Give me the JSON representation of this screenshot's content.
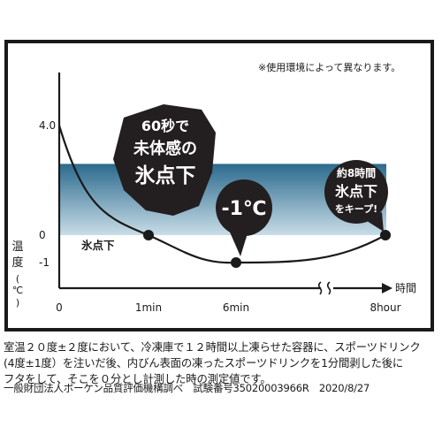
{
  "chart_data": {
    "type": "line",
    "note": "※使用環境によって異なります。",
    "y_label_chars": [
      "温",
      "度",
      "(",
      "℃",
      ")"
    ],
    "x_unit": "時間",
    "y_ticks": [
      {
        "value": 4.0,
        "label": "4.0"
      },
      {
        "value": 0,
        "label": "0"
      },
      {
        "value": -1,
        "label": "-1"
      }
    ],
    "x_ticks": [
      {
        "key": "t0",
        "label": "0"
      },
      {
        "key": "t1",
        "label": "1min"
      },
      {
        "key": "t6",
        "label": "6min"
      },
      {
        "key": "t8",
        "label": "8hour"
      }
    ],
    "ylim": [
      -1.4,
      4.0
    ],
    "freeze_band": {
      "label": "氷点下",
      "from": 0,
      "to": 2.6
    },
    "series": [
      {
        "points": [
          {
            "x": "0",
            "y": 4.0
          },
          {
            "x": "1min",
            "y": 0.0
          },
          {
            "x": "6min",
            "y": -1.0
          },
          {
            "x": "8hour",
            "y": 0.0
          }
        ]
      }
    ],
    "callouts": [
      {
        "key": "c1",
        "lines": [
          "60秒で",
          "未体感の",
          "氷点下"
        ]
      },
      {
        "key": "c2",
        "lines": [
          "-1℃"
        ]
      },
      {
        "key": "c3",
        "lines": [
          "約8時間",
          "氷点下",
          "をキープ!"
        ]
      }
    ],
    "colors": {
      "band_top": "#2b6a8e",
      "band_bottom": "#c9dde7",
      "line": "#1a1a1a",
      "callout": "#231f20"
    }
  },
  "footnotes": [
    "室温２０度±２度において、冷凍庫で１２時間以上凍らせた容器に、スポーツドリンク",
    "(4度±1度）を注いだ後、内びん表面の凍ったスポーツドリンクを1分間剥した後に",
    "フタをして、そこを０分とし計測した時の測定値です。",
    "一般財団法人ボーケン品質評価機構調べ　試験番号35020003966R　2020/8/27"
  ]
}
